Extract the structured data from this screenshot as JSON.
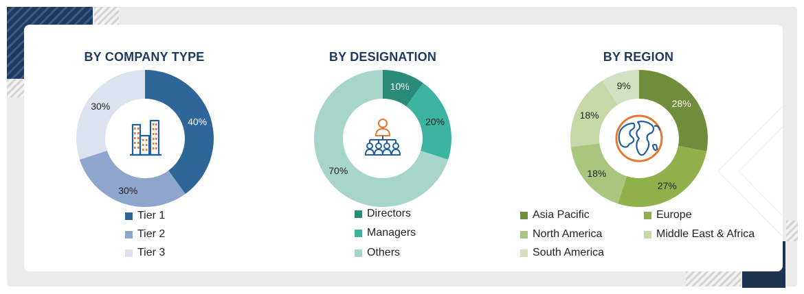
{
  "chart_data": [
    {
      "type": "pie",
      "title": "BY COMPANY TYPE",
      "categories": [
        "Tier 1",
        "Tier 2",
        "Tier 3"
      ],
      "values": [
        40,
        30,
        30
      ],
      "labels": [
        "40%",
        "30%",
        "30%"
      ],
      "colors": [
        "#2f6699",
        "#8ea6cc",
        "#dde3ee"
      ],
      "label_colors": [
        "#ffffff",
        "#222222",
        "#222222"
      ],
      "icon": "buildings-icon"
    },
    {
      "type": "pie",
      "title": "BY DESIGNATION",
      "categories": [
        "Directors",
        "Managers",
        "Others"
      ],
      "values": [
        10,
        20,
        70
      ],
      "labels": [
        "10%",
        "20%",
        "70%"
      ],
      "colors": [
        "#2a8c78",
        "#3cb4a0",
        "#a8d5c9"
      ],
      "label_colors": [
        "#ffffff",
        "#222222",
        "#222222"
      ],
      "icon": "org-chart-icon"
    },
    {
      "type": "pie",
      "title": "BY REGION",
      "categories": [
        "Asia Pacific",
        "Europe",
        "North America",
        "Middle East & Africa",
        "South America"
      ],
      "values": [
        28,
        27,
        18,
        18,
        9
      ],
      "labels": [
        "28%",
        "27%",
        "18%",
        "18%",
        "9%"
      ],
      "colors": [
        "#6e8e3c",
        "#8fb04a",
        "#a9c67e",
        "#c6d8a6",
        "#d4e1c0"
      ],
      "label_colors": [
        "#ffffff",
        "#222222",
        "#222222",
        "#222222",
        "#222222"
      ],
      "icon": "globe-icon"
    }
  ],
  "colors": {
    "title": "#1e3a5f",
    "icon_blue": "#1f5f9e",
    "icon_orange": "#e8772e"
  }
}
